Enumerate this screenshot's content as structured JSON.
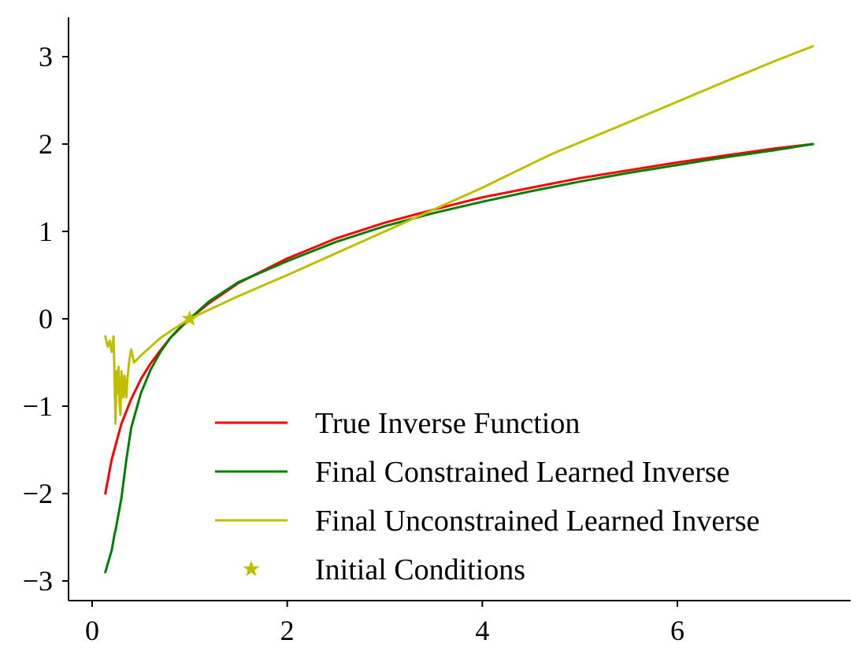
{
  "chart_data": {
    "type": "line",
    "title": "",
    "xlabel": "",
    "ylabel": "",
    "xlim": [
      -0.2,
      7.8
    ],
    "ylim": [
      -3.2,
      3.4
    ],
    "xticks": [
      0,
      2,
      4,
      6
    ],
    "yticks": [
      3,
      2,
      1,
      0,
      -1,
      -2,
      -3
    ],
    "grid": false,
    "legend_position": "lower right",
    "series": [
      {
        "name": "True Inverse Function",
        "color": "#ff0000",
        "x": [
          0.135,
          0.2,
          0.3,
          0.4,
          0.5,
          0.6,
          0.7,
          0.8,
          0.9,
          1.0,
          1.2,
          1.5,
          2.0,
          2.5,
          3.0,
          3.5,
          4.0,
          4.5,
          5.0,
          5.5,
          6.0,
          6.5,
          7.0,
          7.39
        ],
        "y": [
          -2.0,
          -1.61,
          -1.2,
          -0.92,
          -0.69,
          -0.51,
          -0.36,
          -0.22,
          -0.11,
          0.0,
          0.18,
          0.41,
          0.69,
          0.92,
          1.1,
          1.25,
          1.39,
          1.5,
          1.61,
          1.7,
          1.79,
          1.87,
          1.95,
          2.0
        ]
      },
      {
        "name": "Final Constrained Learned Inverse",
        "color": "#008000",
        "x": [
          0.135,
          0.2,
          0.23,
          0.24,
          0.3,
          0.35,
          0.4,
          0.5,
          0.6,
          0.7,
          0.8,
          0.9,
          1.0,
          1.2,
          1.5,
          2.0,
          2.5,
          3.0,
          3.5,
          4.0,
          4.5,
          5.0,
          5.5,
          6.0,
          6.5,
          7.0,
          7.39
        ],
        "y": [
          -2.9,
          -2.65,
          -2.46,
          -2.42,
          -2.05,
          -1.62,
          -1.25,
          -0.85,
          -0.58,
          -0.38,
          -0.22,
          -0.1,
          0.0,
          0.2,
          0.42,
          0.66,
          0.88,
          1.06,
          1.21,
          1.34,
          1.46,
          1.57,
          1.67,
          1.76,
          1.85,
          1.93,
          2.0
        ]
      },
      {
        "name": "Final Unconstrained Learned Inverse",
        "color": "#bfbf00",
        "x": [
          0.135,
          0.16,
          0.18,
          0.2,
          0.22,
          0.24,
          0.25,
          0.26,
          0.27,
          0.28,
          0.29,
          0.3,
          0.31,
          0.32,
          0.33,
          0.34,
          0.35,
          0.36,
          0.38,
          0.4,
          0.43,
          0.5,
          0.7,
          0.9,
          1.0,
          1.5,
          2.0,
          3.0,
          4.0,
          4.7,
          5.5,
          6.5,
          7.0,
          7.39
        ],
        "y": [
          -0.2,
          -0.32,
          -0.25,
          -0.38,
          -0.2,
          -1.2,
          -0.6,
          -0.85,
          -0.55,
          -0.95,
          -1.1,
          -0.6,
          -0.8,
          -0.9,
          -0.65,
          -0.75,
          -0.9,
          -0.7,
          -0.48,
          -0.35,
          -0.5,
          -0.42,
          -0.22,
          -0.07,
          0.0,
          0.26,
          0.5,
          1.0,
          1.5,
          1.88,
          2.25,
          2.72,
          2.95,
          3.12
        ]
      }
    ],
    "markers": [
      {
        "name": "Initial Conditions",
        "color": "#bfbf00",
        "shape": "star",
        "x": 1.0,
        "y": 0.0
      }
    ]
  }
}
